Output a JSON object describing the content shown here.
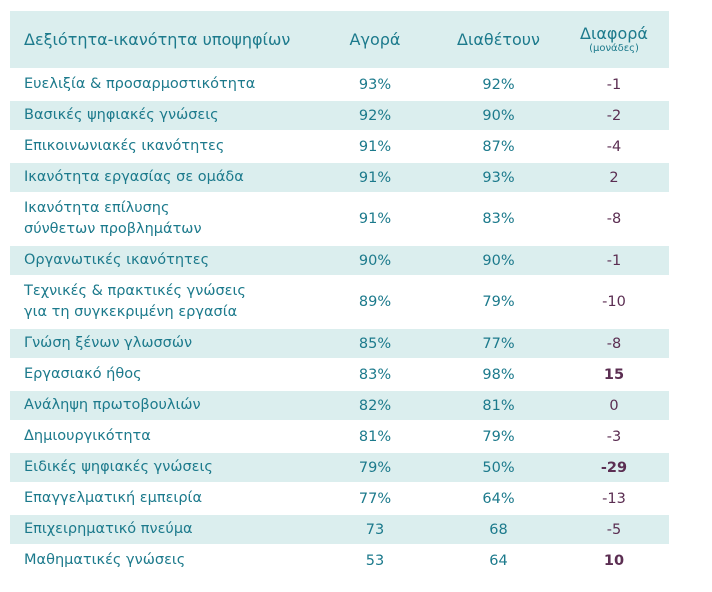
{
  "header": {
    "skill": "Δεξιότητα-ικανότητα υποψηφίων",
    "market": "Αγορά",
    "available": "Διαθέτουν",
    "difference": "Διαφορά",
    "difference_unit": "(μονάδες)"
  },
  "rows": [
    {
      "skill": [
        "Ευελιξία & προσαρμοστικότητα"
      ],
      "market": "93%",
      "available": "92%",
      "diff": "-1",
      "bold": false
    },
    {
      "skill": [
        "Βασικές ψηφιακές γνώσεις"
      ],
      "market": "92%",
      "available": "90%",
      "diff": "-2",
      "bold": false
    },
    {
      "skill": [
        "Επικοινωνιακές ικανότητες"
      ],
      "market": "91%",
      "available": "87%",
      "diff": "-4",
      "bold": false
    },
    {
      "skill": [
        "Ικανότητα εργασίας σε ομάδα"
      ],
      "market": "91%",
      "available": "93%",
      "diff": "2",
      "bold": false
    },
    {
      "skill": [
        "Ικανότητα επίλυσης",
        "σύνθετων προβλημάτων"
      ],
      "market": "91%",
      "available": "83%",
      "diff": "-8",
      "bold": false
    },
    {
      "skill": [
        "Οργανωτικές ικανότητες"
      ],
      "market": "90%",
      "available": "90%",
      "diff": "-1",
      "bold": false
    },
    {
      "skill": [
        "Τεχνικές & πρακτικές γνώσεις",
        "για τη συγκεκριμένη εργασία"
      ],
      "market": "89%",
      "available": "79%",
      "diff": "-10",
      "bold": false
    },
    {
      "skill": [
        "Γνώση ξένων γλωσσών"
      ],
      "market": "85%",
      "available": "77%",
      "diff": "-8",
      "bold": false
    },
    {
      "skill": [
        "Εργασιακό ήθος"
      ],
      "market": "83%",
      "available": "98%",
      "diff": "15",
      "bold": true
    },
    {
      "skill": [
        "Ανάληψη πρωτοβουλιών"
      ],
      "market": "82%",
      "available": "81%",
      "diff": "0",
      "bold": false
    },
    {
      "skill": [
        "Δημιουργικότητα"
      ],
      "market": "81%",
      "available": "79%",
      "diff": "-3",
      "bold": false
    },
    {
      "skill": [
        "Ειδικές ψηφιακές γνώσεις"
      ],
      "market": "79%",
      "available": "50%",
      "diff": "-29",
      "bold": true
    },
    {
      "skill": [
        "Επαγγελματική εμπειρία"
      ],
      "market": "77%",
      "available": "64%",
      "diff": "-13",
      "bold": false
    },
    {
      "skill": [
        "Επιχειρηματικό πνεύμα"
      ],
      "market": "73",
      "available": "68",
      "diff": "-5",
      "bold": false
    },
    {
      "skill": [
        "Μαθηματικές γνώσεις"
      ],
      "market": "53",
      "available": "64",
      "diff": "10",
      "bold": true
    }
  ],
  "colors": {
    "shade": "#dbeeee",
    "text": "#1c7a8c",
    "diff_text": "#5b2e52"
  }
}
